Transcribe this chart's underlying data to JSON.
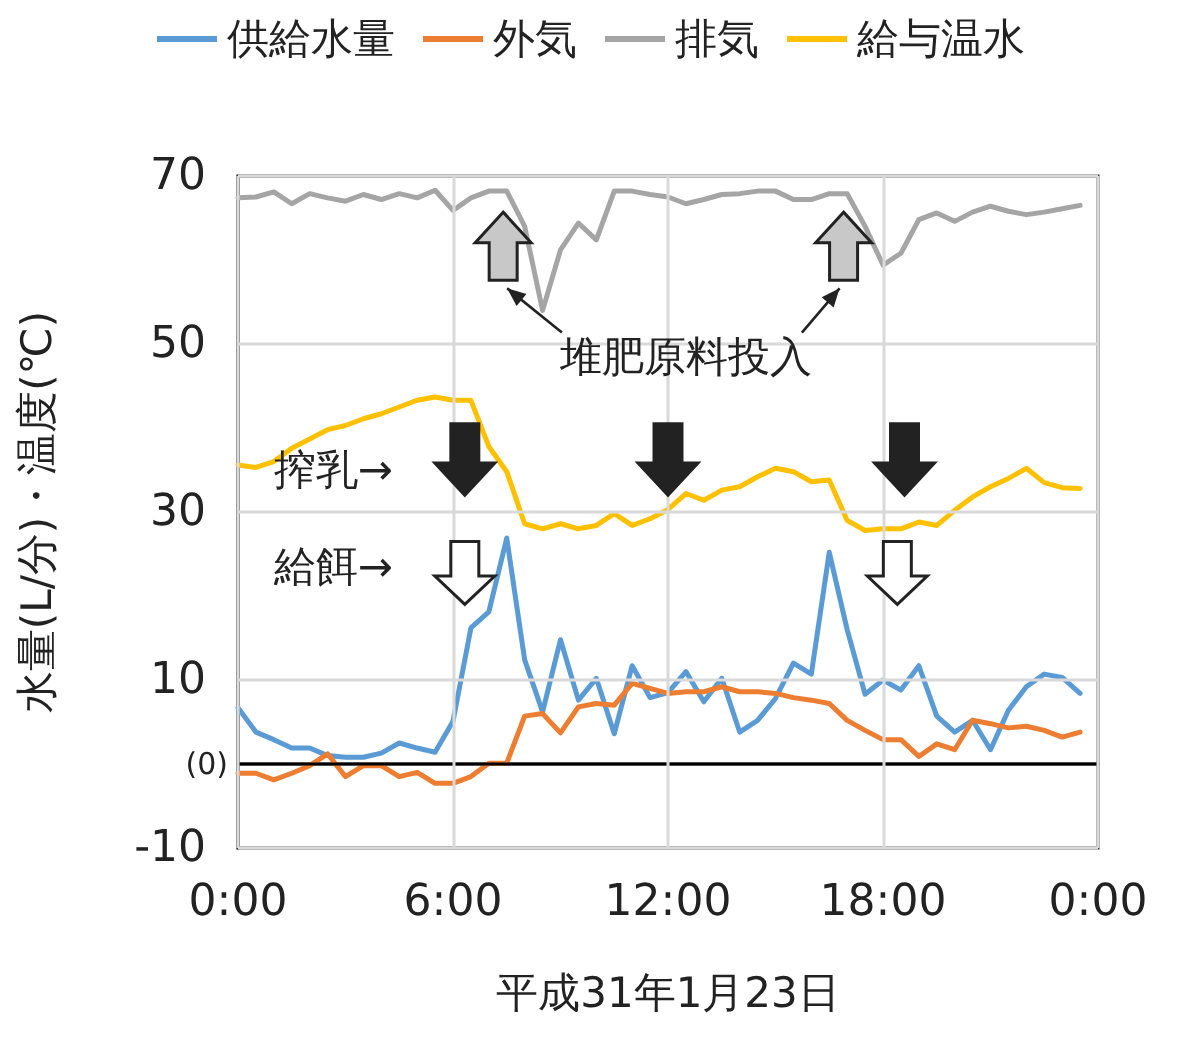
{
  "chart_data": {
    "type": "line",
    "xlabel": "平成31年1月23日",
    "ylabel": "水量(L/分)・温度(℃)",
    "x": [
      0,
      0.5,
      1,
      1.5,
      2,
      2.5,
      3,
      3.5,
      4,
      4.5,
      5,
      5.5,
      6,
      6.5,
      7,
      7.5,
      8,
      8.5,
      9,
      9.5,
      10,
      10.5,
      11,
      11.5,
      12,
      12.5,
      13,
      13.5,
      14,
      14.5,
      15,
      15.5,
      16,
      16.5,
      17,
      17.5,
      18,
      18.5,
      19,
      19.5,
      20,
      20.5,
      21,
      21.5,
      22,
      22.5,
      23,
      23.5
    ],
    "series": [
      {
        "name": "供給水量",
        "color": "#5b9bd5",
        "values": [
          6.7,
          3.8,
          2.9,
          1.9,
          1.9,
          1.0,
          0.8,
          0.8,
          1.3,
          2.5,
          1.9,
          1.4,
          5.1,
          16.2,
          18.1,
          26.9,
          12.4,
          6.2,
          14.8,
          7.6,
          10.2,
          3.6,
          11.7,
          7.9,
          8.5,
          11.0,
          7.4,
          10.2,
          3.8,
          5.2,
          7.8,
          12.0,
          10.7,
          25.2,
          16.0,
          8.3,
          10.0,
          8.8,
          11.7,
          5.7,
          3.8,
          5.2,
          1.7,
          6.4,
          9.2,
          10.7,
          10.3,
          8.4
        ]
      },
      {
        "name": "外気",
        "color": "#ed7d31",
        "values": [
          -1.1,
          -1.1,
          -1.9,
          -1.1,
          -0.2,
          1.2,
          -1.5,
          -0.2,
          -0.2,
          -1.5,
          -1.0,
          -2.3,
          -2.3,
          -1.5,
          0.1,
          0.1,
          5.7,
          6.0,
          3.7,
          6.8,
          7.2,
          7.0,
          9.6,
          9.0,
          8.4,
          8.6,
          8.6,
          9.2,
          8.6,
          8.6,
          8.4,
          7.9,
          7.6,
          7.2,
          5.2,
          4.0,
          2.9,
          2.9,
          0.9,
          2.4,
          1.7,
          5.2,
          4.8,
          4.3,
          4.5,
          4.0,
          3.2,
          3.8
        ]
      },
      {
        "name": "排気",
        "color": "#a5a5a5",
        "values": [
          67.4,
          67.5,
          68.1,
          66.7,
          67.9,
          67.4,
          67.0,
          67.8,
          67.2,
          67.9,
          67.4,
          68.3,
          65.9,
          67.4,
          68.2,
          68.2,
          64.0,
          54.0,
          61.2,
          64.4,
          62.4,
          68.2,
          68.2,
          67.8,
          67.5,
          66.7,
          67.2,
          67.8,
          67.9,
          68.2,
          68.2,
          67.2,
          67.2,
          67.9,
          67.9,
          64.0,
          59.4,
          60.8,
          64.8,
          65.6,
          64.6,
          65.7,
          66.4,
          65.8,
          65.4,
          65.7,
          66.1,
          66.5
        ]
      },
      {
        "name": "給与温水",
        "color": "#ffc000",
        "values": [
          35.6,
          35.3,
          36.0,
          37.6,
          38.7,
          39.8,
          40.3,
          41.1,
          41.7,
          42.5,
          43.3,
          43.7,
          43.3,
          43.3,
          37.8,
          34.8,
          28.6,
          28.0,
          28.6,
          28.0,
          28.4,
          29.8,
          28.4,
          29.2,
          30.3,
          32.2,
          31.4,
          32.6,
          33.0,
          34.2,
          35.2,
          34.8,
          33.6,
          33.8,
          29.0,
          27.8,
          28.0,
          28.0,
          28.8,
          28.4,
          30.2,
          31.8,
          33.0,
          34.0,
          35.2,
          33.5,
          32.9,
          32.8
        ]
      }
    ],
    "xlim": [
      0,
      24
    ],
    "xticks": [
      {
        "value": 0,
        "label": "0:00"
      },
      {
        "value": 6,
        "label": "6:00"
      },
      {
        "value": 12,
        "label": "12:00"
      },
      {
        "value": 18,
        "label": "18:00"
      },
      {
        "value": 24,
        "label": "0:00"
      }
    ],
    "ylim": [
      -10,
      70
    ],
    "yticks": [
      -10,
      10,
      30,
      50,
      70
    ],
    "ref_lines": [
      {
        "axis": "y",
        "value": 0,
        "label": "(0)",
        "color": "#000000"
      }
    ],
    "annotations": [
      "堆肥原料投入",
      "搾乳→",
      "給餌→"
    ],
    "grid": true,
    "legend": "top",
    "marker": "none",
    "line_style": "solid"
  }
}
